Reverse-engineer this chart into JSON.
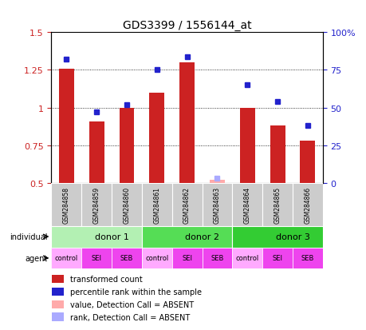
{
  "title": "GDS3399 / 1556144_at",
  "samples": [
    "GSM284858",
    "GSM284859",
    "GSM284860",
    "GSM284861",
    "GSM284862",
    "GSM284863",
    "GSM284864",
    "GSM284865",
    "GSM284866"
  ],
  "red_values": [
    1.26,
    0.91,
    1.0,
    1.1,
    1.3,
    0.0,
    1.0,
    0.88,
    0.78
  ],
  "blue_values": [
    82,
    47,
    52,
    75,
    84,
    0,
    65,
    54,
    38
  ],
  "red_absent": [
    false,
    false,
    false,
    false,
    false,
    true,
    false,
    false,
    false
  ],
  "blue_absent": [
    false,
    false,
    false,
    false,
    false,
    true,
    false,
    false,
    false
  ],
  "ylim_left": [
    0.5,
    1.5
  ],
  "ylim_right": [
    0,
    100
  ],
  "yticks_left": [
    0.5,
    0.75,
    1.0,
    1.25,
    1.5
  ],
  "yticks_right": [
    0,
    25,
    50,
    75,
    100
  ],
  "ytick_labels_left": [
    "0.5",
    "0.75",
    "1",
    "1.25",
    "1.5"
  ],
  "ytick_labels_right": [
    "0",
    "25",
    "50",
    "75",
    "100%"
  ],
  "donors": [
    {
      "label": "donor 1",
      "start": 0,
      "end": 3,
      "color": "#b3f0b3"
    },
    {
      "label": "donor 2",
      "start": 3,
      "end": 6,
      "color": "#55dd55"
    },
    {
      "label": "donor 3",
      "start": 6,
      "end": 9,
      "color": "#33cc33"
    }
  ],
  "agents": [
    "control",
    "SEI",
    "SEB",
    "control",
    "SEI",
    "SEB",
    "control",
    "SEI",
    "SEB"
  ],
  "agent_colors": [
    "#ffaaff",
    "#ee44ee",
    "#ee44ee",
    "#ffaaff",
    "#ee44ee",
    "#ee44ee",
    "#ffaaff",
    "#ee44ee",
    "#ee44ee"
  ],
  "bar_color": "#cc2222",
  "dot_color": "#2222cc",
  "absent_bar_color": "#ffaaaa",
  "absent_dot_color": "#aaaaff",
  "bar_width": 0.5,
  "dot_size": 5,
  "bg_color": "#ffffff",
  "sample_row_color": "#cccccc",
  "legend_items": [
    {
      "color": "#cc2222",
      "label": "transformed count"
    },
    {
      "color": "#2222cc",
      "label": "percentile rank within the sample"
    },
    {
      "color": "#ffaaaa",
      "label": "value, Detection Call = ABSENT"
    },
    {
      "color": "#aaaaff",
      "label": "rank, Detection Call = ABSENT"
    }
  ]
}
